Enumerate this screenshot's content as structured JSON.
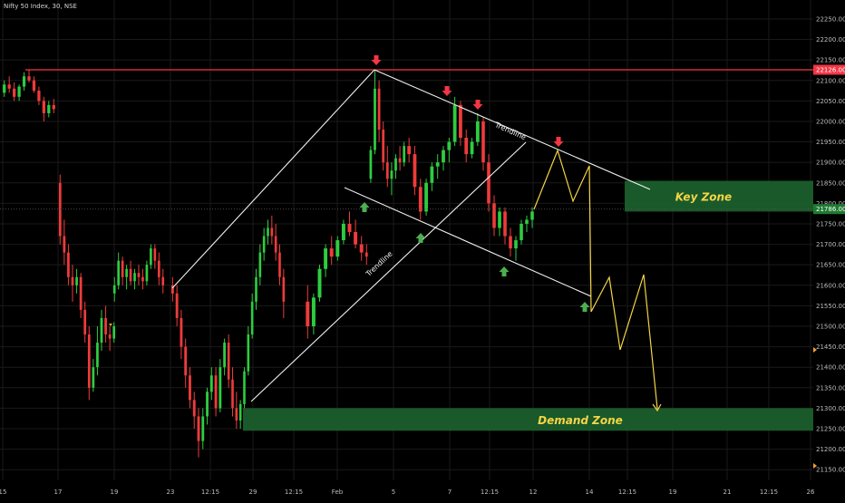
{
  "header": {
    "title": "Nifty 50 Index, 30, NSE"
  },
  "chart_data": {
    "type": "candlestick",
    "symbol": "Nifty 50 Index",
    "interval": "30",
    "exchange": "NSE",
    "ylim": [
      21120,
      22280
    ],
    "y_ticks": [
      22250,
      22200,
      22150,
      22100,
      22050,
      22000,
      21950,
      21900,
      21850,
      21800,
      21750,
      21700,
      21650,
      21600,
      21550,
      21500,
      21450,
      21400,
      21350,
      21300,
      21250,
      21200,
      21150
    ],
    "x_ticks": [
      "15",
      "17",
      "19",
      "23",
      "12:15",
      "29",
      "12:15",
      "Feb",
      "5",
      "7",
      "12:15",
      "12",
      "14",
      "12:15",
      "19",
      "21",
      "12:15",
      "26"
    ],
    "resistance_level": {
      "price": 22126,
      "label": "22126.00",
      "color": "#f23645"
    },
    "last_price": {
      "price": 21786,
      "label": "21786.00",
      "color": "#1e7a32"
    },
    "zones": [
      {
        "name": "Key Zone",
        "from": 21780,
        "to": 21855
      },
      {
        "name": "Demand Zone",
        "from": 21245,
        "to": 21300
      }
    ],
    "trendline_labels": [
      "Trendline",
      "Trendline"
    ],
    "colors": {
      "up": "#26a69a",
      "up_bright": "#2ecc40",
      "down": "#ef3b3b",
      "zone": "#1b5e2b",
      "projection": "#f5d547",
      "grid": "#1a1a1a",
      "text": "#bdbdbd",
      "arrow_down": "#f23645",
      "arrow_up": "#4caf50"
    },
    "candles": [
      [
        22070,
        22100,
        22060,
        22090
      ],
      [
        22090,
        22110,
        22070,
        22080
      ],
      [
        22080,
        22095,
        22050,
        22060
      ],
      [
        22060,
        22090,
        22050,
        22085
      ],
      [
        22085,
        22120,
        22075,
        22110
      ],
      [
        22110,
        22126,
        22095,
        22100
      ],
      [
        22100,
        22110,
        22070,
        22075
      ],
      [
        22075,
        22085,
        22040,
        22050
      ],
      [
        22050,
        22060,
        22000,
        22020
      ],
      [
        22020,
        22050,
        22010,
        22040
      ],
      [
        22040,
        22055,
        22020,
        22030
      ],
      [
        21850,
        21870,
        21700,
        21720
      ],
      [
        21720,
        21760,
        21650,
        21680
      ],
      [
        21680,
        21700,
        21600,
        21620
      ],
      [
        21620,
        21650,
        21560,
        21600
      ],
      [
        21600,
        21640,
        21580,
        21620
      ],
      [
        21620,
        21630,
        21520,
        21540
      ],
      [
        21540,
        21560,
        21460,
        21480
      ],
      [
        21480,
        21500,
        21320,
        21350
      ],
      [
        21350,
        21420,
        21340,
        21400
      ],
      [
        21400,
        21500,
        21380,
        21460
      ],
      [
        21460,
        21540,
        21440,
        21520
      ],
      [
        21520,
        21550,
        21460,
        21480
      ],
      [
        21480,
        21500,
        21440,
        21470
      ],
      [
        21470,
        21510,
        21460,
        21500
      ],
      [
        21580,
        21620,
        21560,
        21600
      ],
      [
        21600,
        21680,
        21590,
        21660
      ],
      [
        21660,
        21670,
        21600,
        21620
      ],
      [
        21620,
        21650,
        21590,
        21640
      ],
      [
        21640,
        21660,
        21600,
        21610
      ],
      [
        21610,
        21640,
        21590,
        21630
      ],
      [
        21630,
        21650,
        21600,
        21620
      ],
      [
        21620,
        21640,
        21590,
        21610
      ],
      [
        21610,
        21660,
        21600,
        21650
      ],
      [
        21650,
        21700,
        21640,
        21690
      ],
      [
        21690,
        21700,
        21640,
        21660
      ],
      [
        21660,
        21680,
        21600,
        21620
      ],
      [
        21620,
        21640,
        21580,
        21600
      ],
      [
        21600,
        21620,
        21560,
        21580
      ],
      [
        21580,
        21600,
        21500,
        21520
      ],
      [
        21520,
        21540,
        21420,
        21450
      ],
      [
        21450,
        21470,
        21350,
        21380
      ],
      [
        21380,
        21400,
        21300,
        21320
      ],
      [
        21320,
        21340,
        21250,
        21280
      ],
      [
        21280,
        21300,
        21180,
        21220
      ],
      [
        21220,
        21300,
        21200,
        21280
      ],
      [
        21280,
        21350,
        21260,
        21340
      ],
      [
        21340,
        21400,
        21320,
        21380
      ],
      [
        21380,
        21400,
        21280,
        21300
      ],
      [
        21300,
        21420,
        21290,
        21400
      ],
      [
        21400,
        21470,
        21380,
        21460
      ],
      [
        21460,
        21480,
        21350,
        21370
      ],
      [
        21370,
        21400,
        21280,
        21300
      ],
      [
        21300,
        21340,
        21250,
        21270
      ],
      [
        21270,
        21320,
        21250,
        21310
      ],
      [
        21310,
        21400,
        21300,
        21390
      ],
      [
        21390,
        21500,
        21380,
        21480
      ],
      [
        21480,
        21580,
        21470,
        21560
      ],
      [
        21560,
        21640,
        21540,
        21620
      ],
      [
        21620,
        21700,
        21600,
        21680
      ],
      [
        21680,
        21740,
        21660,
        21720
      ],
      [
        21720,
        21760,
        21700,
        21740
      ],
      [
        21740,
        21770,
        21700,
        21720
      ],
      [
        21720,
        21750,
        21660,
        21680
      ],
      [
        21680,
        21700,
        21600,
        21620
      ],
      [
        21620,
        21640,
        21520,
        21560
      ],
      [
        21560,
        21600,
        21470,
        21500
      ],
      [
        21500,
        21580,
        21480,
        21570
      ],
      [
        21570,
        21650,
        21560,
        21640
      ],
      [
        21640,
        21700,
        21620,
        21690
      ],
      [
        21690,
        21720,
        21650,
        21670
      ],
      [
        21670,
        21720,
        21660,
        21710
      ],
      [
        21710,
        21760,
        21700,
        21750
      ],
      [
        21750,
        21780,
        21720,
        21730
      ],
      [
        21730,
        21760,
        21690,
        21700
      ],
      [
        21700,
        21720,
        21660,
        21680
      ],
      [
        21680,
        21700,
        21650,
        21670
      ],
      [
        21860,
        21940,
        21850,
        21930
      ],
      [
        21930,
        22126,
        21920,
        22080
      ],
      [
        22080,
        22100,
        21950,
        21980
      ],
      [
        21980,
        22000,
        21880,
        21900
      ],
      [
        21900,
        21940,
        21840,
        21860
      ],
      [
        21860,
        21900,
        21820,
        21880
      ],
      [
        21880,
        21920,
        21860,
        21910
      ],
      [
        21910,
        21940,
        21880,
        21900
      ],
      [
        21900,
        21950,
        21890,
        21940
      ],
      [
        21940,
        21960,
        21900,
        21920
      ],
      [
        21920,
        21940,
        21820,
        21840
      ],
      [
        21840,
        21860,
        21760,
        21780
      ],
      [
        21780,
        21860,
        21770,
        21850
      ],
      [
        21850,
        21900,
        21830,
        21890
      ],
      [
        21890,
        21920,
        21860,
        21900
      ],
      [
        21900,
        21940,
        21880,
        21930
      ],
      [
        21930,
        21960,
        21900,
        21950
      ],
      [
        21950,
        22060,
        21940,
        22040
      ],
      [
        22040,
        22050,
        21940,
        21960
      ],
      [
        21960,
        21980,
        21900,
        21920
      ],
      [
        21920,
        21960,
        21910,
        21950
      ],
      [
        21950,
        22020,
        21940,
        22000
      ],
      [
        22000,
        22010,
        21880,
        21900
      ],
      [
        21900,
        21920,
        21780,
        21800
      ],
      [
        21800,
        21820,
        21720,
        21740
      ],
      [
        21740,
        21790,
        21720,
        21780
      ],
      [
        21780,
        21790,
        21700,
        21720
      ],
      [
        21720,
        21740,
        21670,
        21690
      ],
      [
        21690,
        21720,
        21660,
        21710
      ],
      [
        21710,
        21760,
        21700,
        21750
      ],
      [
        21750,
        21770,
        21730,
        21760
      ],
      [
        21760,
        21790,
        21740,
        21780
      ],
      [
        21780,
        21800,
        21770,
        21790
      ]
    ]
  }
}
